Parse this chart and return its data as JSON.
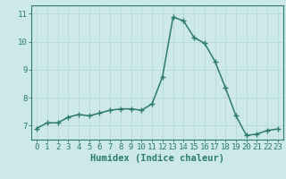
{
  "x": [
    0,
    1,
    2,
    3,
    4,
    5,
    6,
    7,
    8,
    9,
    10,
    11,
    12,
    13,
    14,
    15,
    16,
    17,
    18,
    19,
    20,
    21,
    22,
    23
  ],
  "y": [
    6.9,
    7.1,
    7.1,
    7.3,
    7.4,
    7.35,
    7.45,
    7.55,
    7.6,
    7.6,
    7.55,
    7.78,
    8.75,
    10.88,
    10.75,
    10.15,
    9.95,
    9.3,
    8.35,
    7.35,
    6.65,
    6.7,
    6.83,
    6.88
  ],
  "line_color": "#2d7a70",
  "marker": "+",
  "marker_size": 4,
  "bg_color": "#cce8e8",
  "grid_color": "#b8d8d8",
  "xlabel": "Humidex (Indice chaleur)",
  "ylim": [
    6.5,
    11.3
  ],
  "xlim": [
    -0.5,
    23.5
  ],
  "yticks": [
    7,
    8,
    9,
    10,
    11
  ],
  "xticks": [
    0,
    1,
    2,
    3,
    4,
    5,
    6,
    7,
    8,
    9,
    10,
    11,
    12,
    13,
    14,
    15,
    16,
    17,
    18,
    19,
    20,
    21,
    22,
    23
  ],
  "tick_color": "#2d7a70",
  "label_fontsize": 7.5,
  "tick_fontsize": 6.5,
  "spine_color": "#2d7a70",
  "linewidth": 1.1
}
